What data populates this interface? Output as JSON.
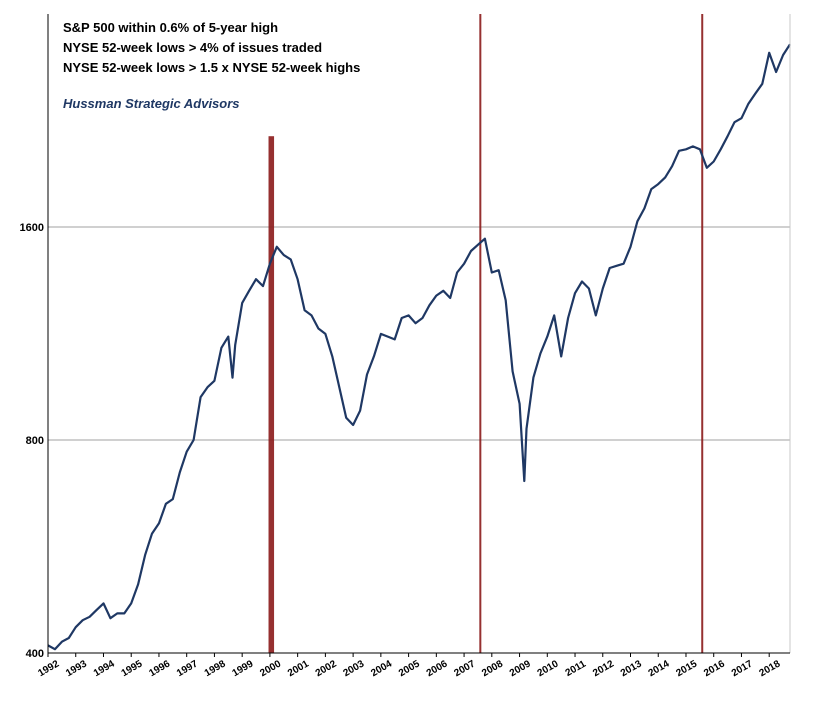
{
  "chart_data": {
    "type": "line",
    "title": "",
    "xlabel": "",
    "ylabel": "",
    "legend_lines": [
      "S&P 500 within 0.6% of 5-year high",
      "NYSE 52-week lows > 4% of issues traded",
      "NYSE 52-week lows > 1.5 x NYSE 52-week highs"
    ],
    "credit": "Hussman Strategic Advisors",
    "y_scale": "log",
    "ylim": [
      400,
      3200
    ],
    "xlim": [
      1992.0,
      2018.75
    ],
    "y_ticks": [
      400,
      800,
      1600
    ],
    "x_ticks": [
      "1992",
      "1993",
      "1994",
      "1995",
      "1996",
      "1997",
      "1998",
      "1999",
      "2000",
      "2001",
      "2002",
      "2003",
      "2004",
      "2005",
      "2006",
      "2007",
      "2008",
      "2009",
      "2010",
      "2011",
      "2012",
      "2013",
      "2014",
      "2015",
      "2016",
      "2017",
      "2018"
    ],
    "grid": true,
    "series": [
      {
        "color": "#1f3864",
        "x": [
          1992.0,
          1992.25,
          1992.5,
          1992.75,
          1993.0,
          1993.25,
          1993.5,
          1993.75,
          1994.0,
          1994.25,
          1994.5,
          1994.75,
          1995.0,
          1995.25,
          1995.5,
          1995.75,
          1996.0,
          1996.25,
          1996.5,
          1996.75,
          1997.0,
          1997.25,
          1997.5,
          1997.75,
          1998.0,
          1998.25,
          1998.5,
          1998.65,
          1998.75,
          1999.0,
          1999.25,
          1999.5,
          1999.75,
          2000.0,
          2000.25,
          2000.5,
          2000.75,
          2001.0,
          2001.25,
          2001.5,
          2001.75,
          2002.0,
          2002.25,
          2002.5,
          2002.75,
          2003.0,
          2003.25,
          2003.5,
          2003.75,
          2004.0,
          2004.25,
          2004.5,
          2004.75,
          2005.0,
          2005.25,
          2005.5,
          2005.75,
          2006.0,
          2006.25,
          2006.5,
          2006.75,
          2007.0,
          2007.25,
          2007.5,
          2007.75,
          2008.0,
          2008.25,
          2008.5,
          2008.75,
          2009.0,
          2009.17,
          2009.25,
          2009.5,
          2009.75,
          2010.0,
          2010.25,
          2010.5,
          2010.75,
          2011.0,
          2011.25,
          2011.5,
          2011.75,
          2012.0,
          2012.25,
          2012.5,
          2012.75,
          2013.0,
          2013.25,
          2013.5,
          2013.75,
          2014.0,
          2014.25,
          2014.5,
          2014.75,
          2015.0,
          2015.25,
          2015.5,
          2015.75,
          2016.0,
          2016.25,
          2016.5,
          2016.75,
          2017.0,
          2017.25,
          2017.5,
          2017.75,
          2018.0,
          2018.25,
          2018.5,
          2018.75
        ],
        "values": [
          410,
          405,
          415,
          420,
          435,
          445,
          450,
          460,
          470,
          448,
          455,
          455,
          470,
          500,
          550,
          590,
          610,
          650,
          660,
          720,
          770,
          800,
          920,
          950,
          970,
          1080,
          1120,
          980,
          1090,
          1250,
          1300,
          1350,
          1320,
          1420,
          1500,
          1460,
          1440,
          1350,
          1220,
          1200,
          1150,
          1130,
          1050,
          950,
          860,
          840,
          880,
          990,
          1050,
          1130,
          1120,
          1110,
          1190,
          1200,
          1170,
          1190,
          1240,
          1280,
          1300,
          1270,
          1380,
          1420,
          1480,
          1510,
          1540,
          1380,
          1390,
          1260,
          1000,
          900,
          700,
          830,
          980,
          1060,
          1120,
          1200,
          1050,
          1190,
          1290,
          1340,
          1310,
          1200,
          1310,
          1400,
          1410,
          1420,
          1500,
          1630,
          1700,
          1810,
          1840,
          1880,
          1950,
          2050,
          2060,
          2080,
          2060,
          1940,
          1980,
          2060,
          2150,
          2250,
          2280,
          2390,
          2470,
          2550,
          2820,
          2650,
          2800,
          2900
        ]
      }
    ],
    "signals": [
      {
        "start": 1999.95,
        "end": 2000.15
      },
      {
        "start": 2007.55,
        "end": 2007.62
      },
      {
        "start": 2015.55,
        "end": 2015.62
      }
    ],
    "colors": {
      "line": "#1f3864",
      "signal": "#8b1a1a",
      "credit": "#1f3864",
      "grid": "#a0a0a0",
      "axis": "#000000"
    }
  }
}
